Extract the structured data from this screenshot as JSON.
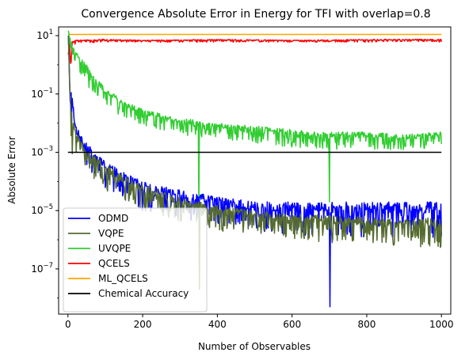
{
  "chart_data": {
    "type": "line",
    "title": "Convergence Absolute Error in Energy for TFI with overlap=0.8",
    "xlabel": "Number of Observables",
    "ylabel": "Absolute Error",
    "xlim": [
      -25,
      1025
    ],
    "ylim_log10": [
      -8.55,
      1.3
    ],
    "yscale": "log",
    "x_ticks": [
      0,
      200,
      400,
      600,
      800,
      1000
    ],
    "y_ticks": [
      {
        "exp": 1,
        "base": "10",
        "power": "1"
      },
      {
        "exp": -1,
        "base": "10",
        "power": "−1"
      },
      {
        "exp": -3,
        "base": "10",
        "power": "−3"
      },
      {
        "exp": -5,
        "base": "10",
        "power": "−5"
      },
      {
        "exp": -7,
        "base": "10",
        "power": "−7"
      }
    ],
    "grid": false,
    "legend_position": "lower-left",
    "series": [
      {
        "name": "ODMD",
        "color": "#0000ff",
        "x": [
          1,
          5,
          10,
          20,
          30,
          50,
          100,
          150,
          200,
          300,
          400,
          500,
          600,
          700,
          800,
          900,
          1000
        ],
        "values": [
          10,
          0.15,
          0.1,
          0.01,
          0.005,
          0.002,
          0.0005,
          0.0002,
          0.0001,
          5e-05,
          3e-05,
          2e-05,
          2e-05,
          2e-05,
          2e-05,
          2e-05,
          2e-05
        ],
        "min_values": [
          10,
          0.1,
          0.02,
          0.002,
          0.0008,
          0.0003,
          5e-05,
          2e-05,
          1e-05,
          5e-06,
          3e-06,
          2e-06,
          1.5e-06,
          1.2e-06,
          1e-06,
          1e-06,
          1e-06
        ]
      },
      {
        "name": "VQPE",
        "color": "#556b2f",
        "x": [
          1,
          5,
          10,
          20,
          30,
          50,
          100,
          150,
          200,
          300,
          400,
          500,
          600,
          700,
          800,
          900,
          1000
        ],
        "values": [
          10,
          0.2,
          0.05,
          0.006,
          0.003,
          0.0012,
          0.0004,
          0.00015,
          8e-05,
          3e-05,
          1.5e-05,
          1e-05,
          8e-06,
          7e-06,
          6e-06,
          5e-06,
          6e-06
        ],
        "min_values": [
          10,
          0.1,
          0.0003,
          0.0008,
          0.0005,
          0.0002,
          5e-05,
          2e-05,
          1e-05,
          4e-06,
          2e-06,
          1.5e-06,
          1e-06,
          8e-07,
          7e-07,
          6e-07,
          5e-07
        ]
      },
      {
        "name": "UVQPE",
        "color": "#32cd32",
        "x": [
          1,
          5,
          10,
          20,
          30,
          50,
          100,
          150,
          200,
          300,
          400,
          500,
          600,
          700,
          800,
          900,
          1000
        ],
        "values": [
          15,
          10,
          5,
          3,
          2,
          1,
          0.15,
          0.06,
          0.03,
          0.015,
          0.01,
          0.008,
          0.006,
          0.005,
          0.005,
          0.004,
          0.005
        ],
        "min_values": [
          10,
          4,
          2,
          1,
          0.6,
          0.2,
          0.04,
          0.015,
          0.008,
          0.004,
          0.003,
          0.002,
          0.0015,
          0.0013,
          0.0012,
          0.0012,
          0.0015
        ]
      },
      {
        "name": "QCELS",
        "color": "#ff0000",
        "x": [
          1,
          20,
          100,
          200,
          400,
          600,
          800,
          1000
        ],
        "values": [
          8,
          7,
          7.5,
          7,
          7.5,
          7,
          7.5,
          7.5
        ],
        "min_values": [
          0.15,
          5.5,
          6,
          6,
          6,
          6,
          6,
          6
        ]
      },
      {
        "name": "ML_QCELS",
        "color": "#ffa500",
        "x": [
          1,
          100,
          200,
          400,
          600,
          800,
          1000
        ],
        "values": [
          11,
          11,
          11,
          11,
          11,
          11,
          11
        ],
        "min_values": [
          11,
          11,
          11,
          11,
          11,
          11,
          11
        ]
      },
      {
        "name": "Chemical Accuracy",
        "color": "#000000",
        "x": [
          0,
          1000
        ],
        "values": [
          0.001,
          0.001
        ]
      }
    ],
    "notable_spikes": [
      {
        "series": "UVQPE",
        "x": 350,
        "value": 1e-05
      },
      {
        "series": "UVQPE",
        "x": 700,
        "value": 2e-05
      },
      {
        "series": "ODMD",
        "x": 702,
        "value": 5e-09
      },
      {
        "series": "VQPE",
        "x": 352,
        "value": 2e-08
      }
    ]
  }
}
